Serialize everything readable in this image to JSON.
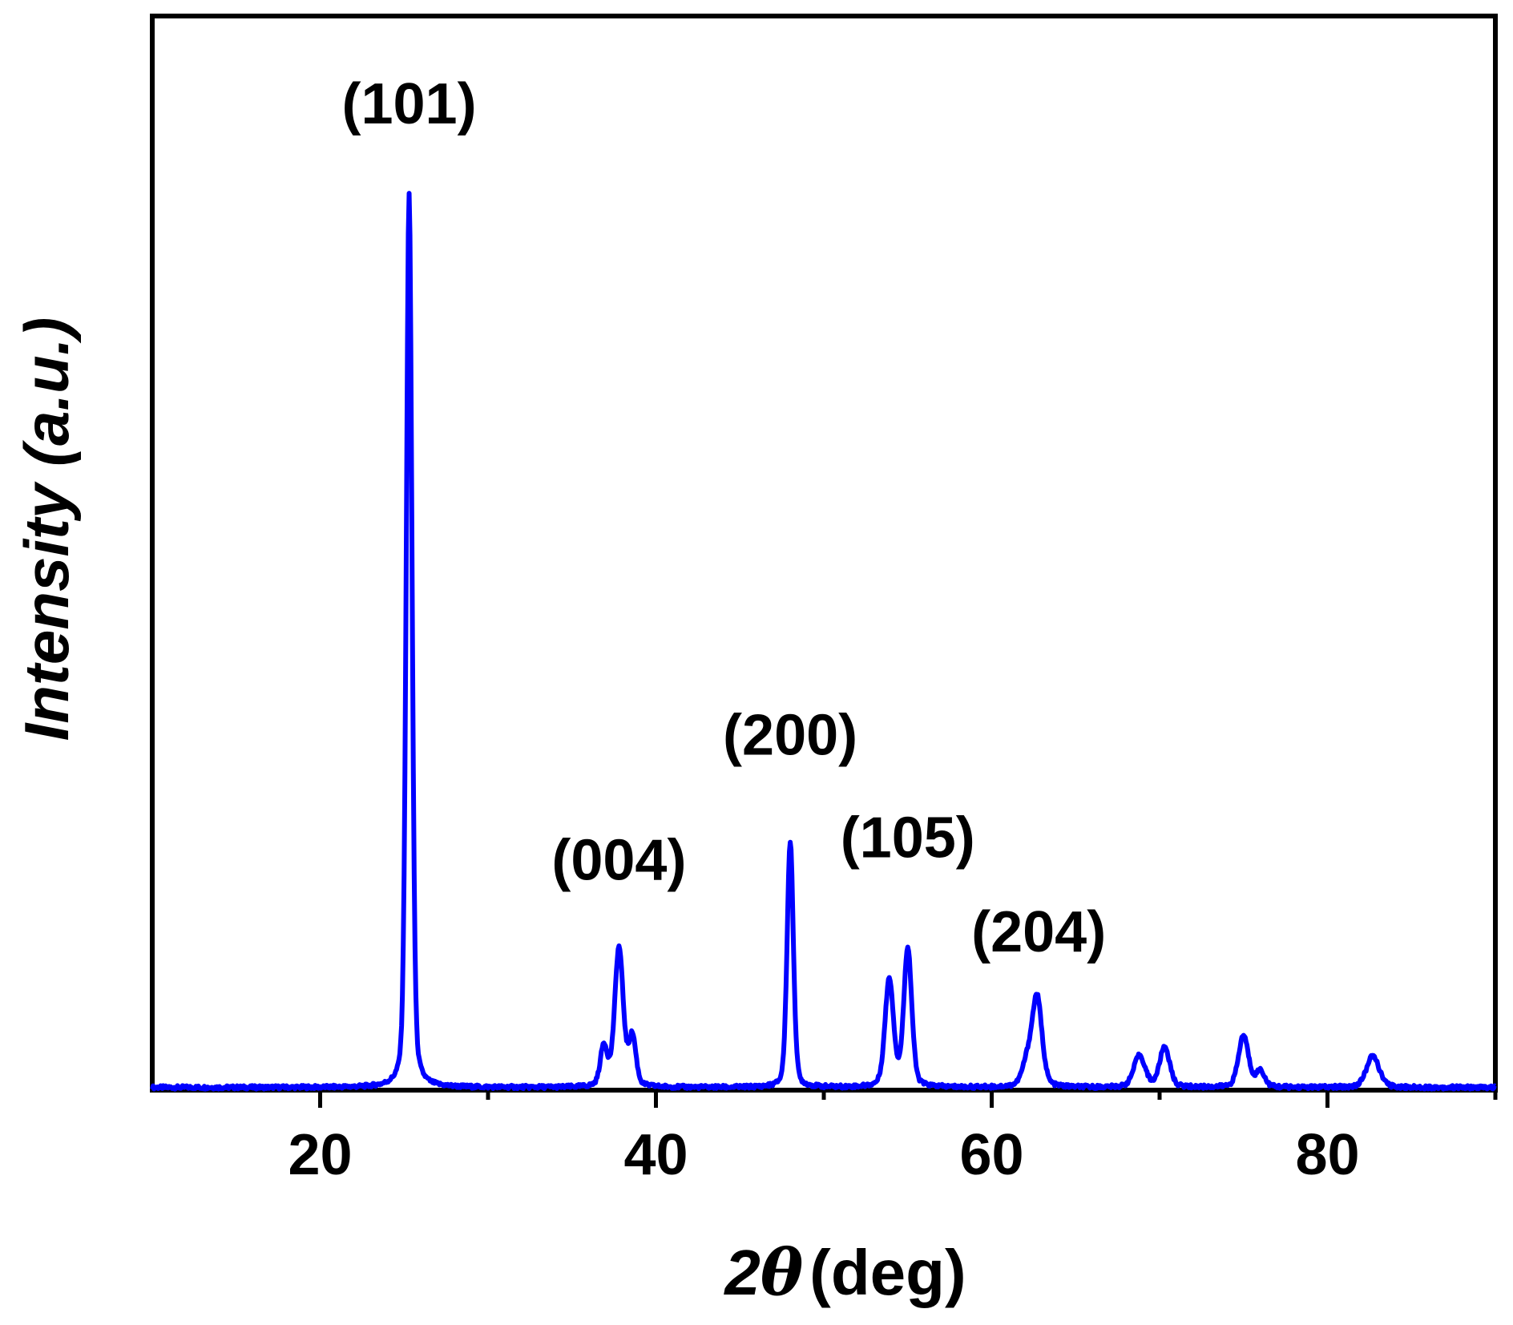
{
  "chart_data": {
    "type": "line",
    "title": "",
    "xlabel": {
      "prefix": "2",
      "symbol": "θ",
      "unit": "(deg)"
    },
    "ylabel": "Intensity (a.u.)",
    "xlim": [
      10,
      90
    ],
    "ylim": [
      0,
      1.2
    ],
    "x_major_ticks": [
      20,
      40,
      60,
      80
    ],
    "x_minor_ticks": [
      30,
      50,
      70,
      90
    ],
    "x_tick_labels": [
      "20",
      "40",
      "60",
      "80"
    ],
    "y_ticks_shown": false,
    "grid": false,
    "legend": "none",
    "line_color": "#0000ff",
    "series": [
      {
        "peaks": [
          {
            "x": 25.3,
            "height": 1.0,
            "width": 0.2,
            "label": "(101)"
          },
          {
            "x": 36.9,
            "height": 0.045,
            "width": 0.25
          },
          {
            "x": 37.8,
            "height": 0.155,
            "width": 0.3,
            "label": "(004)"
          },
          {
            "x": 38.6,
            "height": 0.055,
            "width": 0.25
          },
          {
            "x": 48.0,
            "height": 0.275,
            "width": 0.22,
            "label": "(200)"
          },
          {
            "x": 53.9,
            "height": 0.12,
            "width": 0.3
          },
          {
            "x": 55.0,
            "height": 0.155,
            "width": 0.28,
            "label": "(105)"
          },
          {
            "x": 62.1,
            "height": 0.025,
            "width": 0.35
          },
          {
            "x": 62.7,
            "height": 0.1,
            "width": 0.35,
            "label": "(204)"
          },
          {
            "x": 68.8,
            "height": 0.035,
            "width": 0.4
          },
          {
            "x": 70.3,
            "height": 0.045,
            "width": 0.35
          },
          {
            "x": 75.0,
            "height": 0.058,
            "width": 0.35
          },
          {
            "x": 76.0,
            "height": 0.018,
            "width": 0.3
          },
          {
            "x": 82.7,
            "height": 0.035,
            "width": 0.45
          }
        ]
      }
    ],
    "annotations": [
      {
        "text": "(101)",
        "x": 25.3,
        "y": 1.08
      },
      {
        "text": "(004)",
        "x": 37.8,
        "y": 0.235
      },
      {
        "text": "(200)",
        "x": 48.0,
        "y": 0.375
      },
      {
        "text": "(105)",
        "x": 55.0,
        "y": 0.26
      },
      {
        "text": "(204)",
        "x": 62.8,
        "y": 0.155
      }
    ]
  }
}
